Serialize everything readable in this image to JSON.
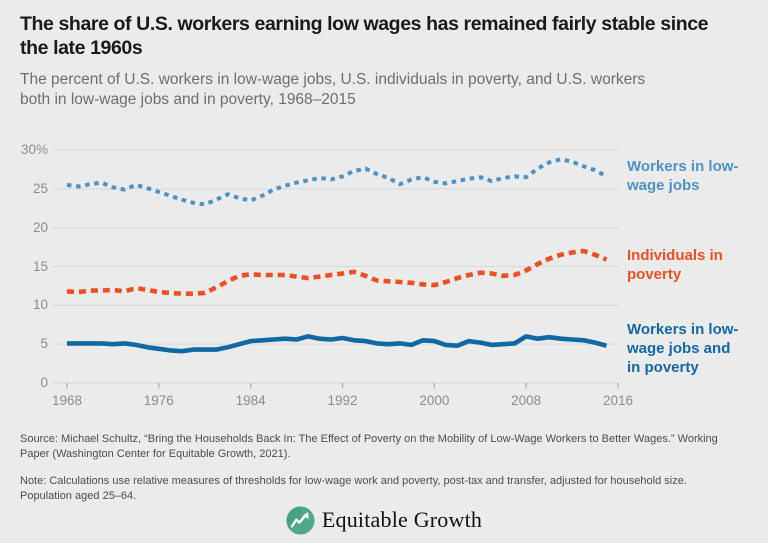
{
  "header": {
    "title": "The share of U.S. workers earning low wages has remained fairly stable since the late 1960s",
    "subtitle": "The percent of U.S. workers in low-wage jobs, U.S. individuals in poverty, and U.S. workers both in low-wage jobs and in poverty, 1968–2015"
  },
  "chart_data": {
    "type": "line",
    "title": "The share of U.S. workers earning low wages has remained fairly stable since the late 1960s",
    "xlabel": "",
    "ylabel": "Percent",
    "xlim": [
      1968,
      2016
    ],
    "ylim": [
      0,
      30
    ],
    "grid": true,
    "legend_position": "right",
    "x_tick_labels": [
      "1968",
      "1976",
      "1984",
      "1992",
      "2000",
      "2008",
      "2016"
    ],
    "x_tick_values": [
      1968,
      1976,
      1984,
      1992,
      2000,
      2008,
      2016
    ],
    "y_tick_labels": [
      "30%",
      "25",
      "20",
      "15",
      "10",
      "5",
      "0"
    ],
    "y_tick_values": [
      30,
      25,
      20,
      15,
      10,
      5,
      0
    ],
    "x": [
      1968,
      1969,
      1970,
      1971,
      1972,
      1973,
      1974,
      1975,
      1976,
      1977,
      1978,
      1979,
      1980,
      1981,
      1982,
      1983,
      1984,
      1985,
      1986,
      1987,
      1988,
      1989,
      1990,
      1991,
      1992,
      1993,
      1994,
      1995,
      1996,
      1997,
      1998,
      1999,
      2000,
      2001,
      2002,
      2003,
      2004,
      2005,
      2006,
      2007,
      2008,
      2009,
      2010,
      2011,
      2012,
      2013,
      2014,
      2015
    ],
    "series": [
      {
        "name": "Workers in low-wage jobs",
        "color": "#4e92c5",
        "style": "dotted",
        "values": [
          25.5,
          25.3,
          25.6,
          25.8,
          25.2,
          24.9,
          25.5,
          25.1,
          24.6,
          24.1,
          23.6,
          23.2,
          23.0,
          23.6,
          24.3,
          23.8,
          23.5,
          24.1,
          24.9,
          25.4,
          25.8,
          26.1,
          26.4,
          26.2,
          26.6,
          27.3,
          27.6,
          26.9,
          26.4,
          25.6,
          26.2,
          26.5,
          25.9,
          25.7,
          26.0,
          26.3,
          26.5,
          26.0,
          26.4,
          26.6,
          26.5,
          27.6,
          28.4,
          28.8,
          28.5,
          27.9,
          27.4,
          26.6
        ]
      },
      {
        "name": "Individuals in poverty",
        "color": "#f04e23",
        "style": "dashed",
        "values": [
          11.8,
          11.7,
          11.9,
          11.9,
          12.0,
          11.8,
          12.2,
          12.0,
          11.7,
          11.6,
          11.5,
          11.5,
          11.6,
          12.3,
          13.1,
          13.8,
          14.0,
          13.9,
          13.9,
          13.9,
          13.7,
          13.5,
          13.7,
          13.9,
          14.1,
          14.3,
          13.8,
          13.2,
          13.1,
          13.0,
          12.9,
          12.7,
          12.6,
          13.0,
          13.5,
          13.9,
          14.2,
          14.1,
          13.8,
          13.9,
          14.5,
          15.3,
          16.0,
          16.5,
          16.8,
          17.0,
          16.5,
          15.9
        ]
      },
      {
        "name": "Workers in low-wage jobs and in poverty",
        "color": "#1168a2",
        "style": "solid",
        "values": [
          5.1,
          5.1,
          5.1,
          5.1,
          5.0,
          5.1,
          4.9,
          4.6,
          4.4,
          4.2,
          4.1,
          4.3,
          4.3,
          4.3,
          4.6,
          5.0,
          5.4,
          5.5,
          5.6,
          5.7,
          5.6,
          6.0,
          5.7,
          5.6,
          5.8,
          5.5,
          5.4,
          5.1,
          5.0,
          5.1,
          4.9,
          5.5,
          5.4,
          4.9,
          4.8,
          5.4,
          5.2,
          4.9,
          5.0,
          5.1,
          6.0,
          5.7,
          5.9,
          5.7,
          5.6,
          5.5,
          5.2,
          4.8
        ]
      }
    ],
    "grid_color": "#d8d8d8",
    "tick_color": "#ababab",
    "background_color": "#ebebeb"
  },
  "footer": {
    "source": "Source: Michael Schultz, “Bring the Households Back In: The Effect of Poverty on the Mobility of Low-Wage Workers to Better Wages.” Working Paper (Washington Center for Equitable Growth, 2021).",
    "note": "Note: Calculations use relative measures of thresholds for low-wage work and poverty, post-tax and transfer, adjusted for household size. Population aged 25–64.",
    "logo_text": "Equitable Growth",
    "logo_color": "#4fa88b"
  }
}
